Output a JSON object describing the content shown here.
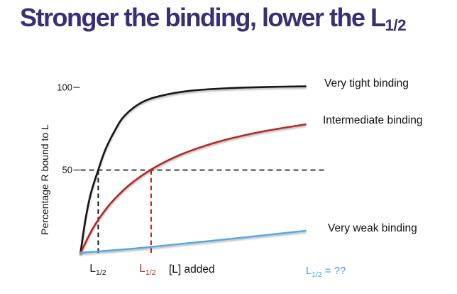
{
  "title": {
    "base": "Stronger the binding, lower the L",
    "sub": "1/2",
    "color": "#3b2e72"
  },
  "chart_data": {
    "type": "line",
    "title": "",
    "xlabel": "[L] added",
    "ylabel": "Percentage R bound to L",
    "ylim": [
      0,
      102
    ],
    "yticks": [
      {
        "value": 100,
        "label": "100"
      },
      {
        "value": 50,
        "label": "50"
      }
    ],
    "grid": false,
    "legend_position": "right of curve endpoints",
    "half_max_reference": {
      "pct": 50,
      "style": "dashed",
      "color": "#3f3f3f"
    },
    "axis_color": "#7f7f7f",
    "series": [
      {
        "name": "Very tight binding",
        "color": "#141414",
        "x_rel": [
          0,
          0.02,
          0.042,
          0.072,
          0.1,
          0.14,
          0.18,
          0.25,
          0.33,
          0.45,
          0.6,
          0.78,
          0.915
        ],
        "pct": [
          0,
          20,
          36,
          50,
          62,
          74,
          83,
          91,
          95,
          98,
          99.5,
          100.3,
          100.6
        ],
        "l_half_x_rel": 0.072,
        "l_half_marker": {
          "base": "L",
          "sub": "1/2"
        }
      },
      {
        "name": "Intermediate binding",
        "color": "#b22b20",
        "x_rel": [
          0,
          0.05,
          0.1,
          0.15,
          0.21,
          0.29,
          0.38,
          0.48,
          0.6,
          0.75,
          0.915
        ],
        "pct": [
          0,
          14.7,
          25.8,
          34.3,
          42.4,
          50.6,
          57.6,
          63.4,
          68.7,
          73.6,
          77.6
        ],
        "l_half_x_rel": 0.287,
        "l_half_marker": {
          "base": "L",
          "sub": "1/2"
        }
      },
      {
        "name": "Very weak binding",
        "color": "#54a7e0",
        "x_rel": [
          0,
          0.25,
          0.55,
          0.915
        ],
        "pct": [
          0,
          3,
          7.5,
          13.3
        ],
        "l_half_note": {
          "base": "L",
          "sub": "1/2",
          "suffix": " = ??",
          "color": "#3f9fe8"
        }
      }
    ]
  }
}
